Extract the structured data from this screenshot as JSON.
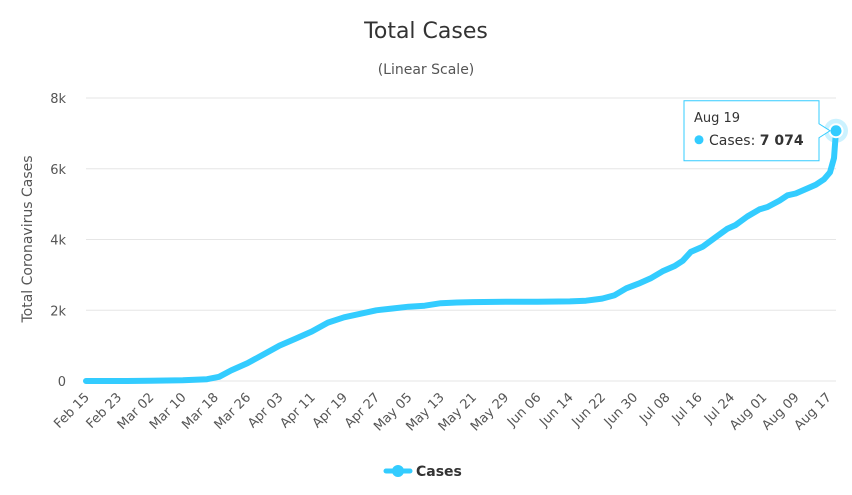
{
  "chart_data": {
    "type": "line",
    "title": "Total Cases",
    "subtitle": "(Linear Scale)",
    "ylabel": "Total Coronavirus Cases",
    "xlabel": "",
    "ylim": [
      0,
      8000
    ],
    "yticks": [
      {
        "value": 0,
        "label": "0"
      },
      {
        "value": 2000,
        "label": "2k"
      },
      {
        "value": 4000,
        "label": "4k"
      },
      {
        "value": 6000,
        "label": "6k"
      },
      {
        "value": 8000,
        "label": "8k"
      }
    ],
    "x_start_date": "Feb 15",
    "x_day_range": [
      0,
      186
    ],
    "xticks": [
      {
        "day": 0,
        "label": "Feb 15"
      },
      {
        "day": 8,
        "label": "Feb 23"
      },
      {
        "day": 16,
        "label": "Mar 02"
      },
      {
        "day": 24,
        "label": "Mar 10"
      },
      {
        "day": 32,
        "label": "Mar 18"
      },
      {
        "day": 40,
        "label": "Mar 26"
      },
      {
        "day": 48,
        "label": "Apr 03"
      },
      {
        "day": 56,
        "label": "Apr 11"
      },
      {
        "day": 64,
        "label": "Apr 19"
      },
      {
        "day": 72,
        "label": "Apr 27"
      },
      {
        "day": 80,
        "label": "May 05"
      },
      {
        "day": 88,
        "label": "May 13"
      },
      {
        "day": 96,
        "label": "May 21"
      },
      {
        "day": 104,
        "label": "May 29"
      },
      {
        "day": 112,
        "label": "Jun 06"
      },
      {
        "day": 120,
        "label": "Jun 14"
      },
      {
        "day": 128,
        "label": "Jun 22"
      },
      {
        "day": 136,
        "label": "Jun 30"
      },
      {
        "day": 144,
        "label": "Jul 08"
      },
      {
        "day": 152,
        "label": "Jul 16"
      },
      {
        "day": 160,
        "label": "Jul 24"
      },
      {
        "day": 168,
        "label": "Aug 01"
      },
      {
        "day": 176,
        "label": "Aug 09"
      },
      {
        "day": 184,
        "label": "Aug 17"
      }
    ],
    "series": [
      {
        "name": "Cases",
        "color": "#33ccff",
        "points": [
          [
            0,
            0
          ],
          [
            8,
            0
          ],
          [
            16,
            5
          ],
          [
            24,
            20
          ],
          [
            30,
            50
          ],
          [
            33,
            120
          ],
          [
            36,
            300
          ],
          [
            40,
            500
          ],
          [
            44,
            750
          ],
          [
            48,
            1000
          ],
          [
            52,
            1200
          ],
          [
            56,
            1400
          ],
          [
            60,
            1650
          ],
          [
            64,
            1800
          ],
          [
            68,
            1900
          ],
          [
            72,
            2000
          ],
          [
            76,
            2050
          ],
          [
            80,
            2100
          ],
          [
            84,
            2130
          ],
          [
            88,
            2200
          ],
          [
            92,
            2220
          ],
          [
            96,
            2230
          ],
          [
            104,
            2240
          ],
          [
            112,
            2240
          ],
          [
            120,
            2250
          ],
          [
            124,
            2270
          ],
          [
            128,
            2330
          ],
          [
            131,
            2420
          ],
          [
            134,
            2620
          ],
          [
            137,
            2750
          ],
          [
            140,
            2900
          ],
          [
            143,
            3100
          ],
          [
            146,
            3250
          ],
          [
            148,
            3400
          ],
          [
            150,
            3650
          ],
          [
            153,
            3800
          ],
          [
            156,
            4050
          ],
          [
            159,
            4300
          ],
          [
            161,
            4400
          ],
          [
            164,
            4650
          ],
          [
            167,
            4850
          ],
          [
            169,
            4920
          ],
          [
            172,
            5100
          ],
          [
            174,
            5250
          ],
          [
            176,
            5300
          ],
          [
            179,
            5450
          ],
          [
            181,
            5550
          ],
          [
            183,
            5700
          ],
          [
            184.5,
            5900
          ],
          [
            185.5,
            6300
          ],
          [
            186,
            7074
          ]
        ]
      }
    ],
    "legend": {
      "position": "bottom-center",
      "label": "Cases"
    },
    "tooltip": {
      "date": "Aug 19",
      "series_label": "Cases",
      "value_text": "7 074",
      "day": 186,
      "value": 7074
    }
  }
}
